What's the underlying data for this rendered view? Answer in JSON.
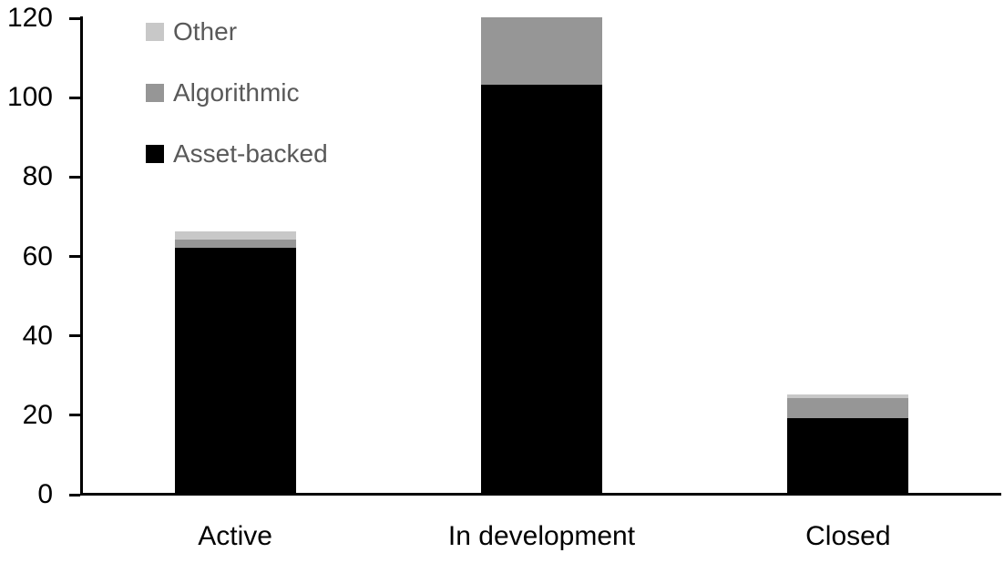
{
  "chart_data": {
    "type": "bar",
    "stacked": true,
    "title": "",
    "xlabel": "",
    "ylabel": "",
    "categories": [
      "Active",
      "In development",
      "Closed"
    ],
    "series": [
      {
        "name": "Asset-backed",
        "color": "#000000",
        "values": [
          62,
          103,
          19
        ]
      },
      {
        "name": "Algorithmic",
        "color": "#969696",
        "values": [
          2,
          17,
          5
        ]
      },
      {
        "name": "Other",
        "color": "#c8c8c8",
        "values": [
          2,
          0,
          1
        ]
      }
    ],
    "ylim": [
      0,
      120
    ],
    "yticks": [
      0,
      20,
      40,
      60,
      80,
      100,
      120
    ],
    "grid": false,
    "legend": {
      "position": "top-left-inside",
      "text_color": "#595959",
      "entries": [
        {
          "label": "Other",
          "color": "#c8c8c8"
        },
        {
          "label": "Algorithmic",
          "color": "#969696"
        },
        {
          "label": "Asset-backed",
          "color": "#000000"
        }
      ]
    },
    "axis_color": "#000000",
    "tick_label_color": "#000000",
    "category_label_color": "#000000"
  }
}
